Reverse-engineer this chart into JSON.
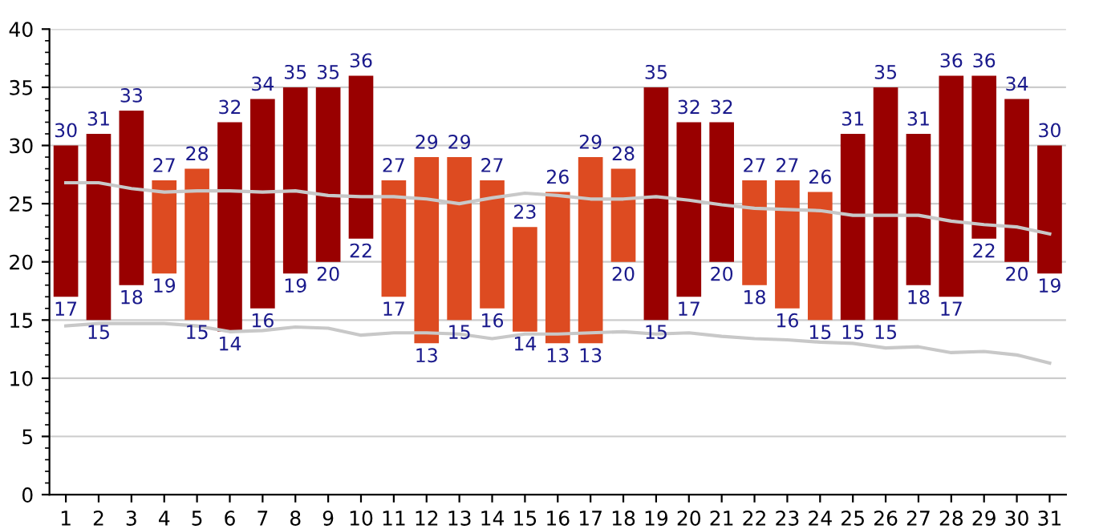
{
  "chart_data": {
    "type": "bar",
    "categories": [
      "1",
      "2",
      "3",
      "4",
      "5",
      "6",
      "7",
      "8",
      "9",
      "10",
      "11",
      "12",
      "13",
      "14",
      "15",
      "16",
      "17",
      "18",
      "19",
      "20",
      "21",
      "22",
      "23",
      "24",
      "25",
      "26",
      "27",
      "28",
      "29",
      "30",
      "31"
    ],
    "ylim": [
      0,
      40
    ],
    "yticks": [
      0,
      5,
      10,
      15,
      20,
      25,
      30,
      35,
      40
    ],
    "grid": "y",
    "legend": false,
    "series": [
      {
        "base": [
          17,
          15,
          18,
          19,
          15,
          14,
          16,
          19,
          20,
          22,
          17,
          13,
          15,
          16,
          14,
          13,
          13,
          20,
          15,
          17,
          20,
          18,
          16,
          15,
          15,
          15,
          18,
          17,
          22,
          20,
          19
        ],
        "values": [
          13,
          16,
          15,
          8,
          13,
          18,
          18,
          16,
          15,
          14,
          10,
          16,
          14,
          11,
          9,
          13,
          16,
          8,
          20,
          15,
          12,
          9,
          11,
          11,
          16,
          20,
          13,
          19,
          14,
          14,
          11
        ],
        "colors": [
          "#990000",
          "#990000",
          "#990000",
          "#dd4b21",
          "#dd4b21",
          "#990000",
          "#990000",
          "#990000",
          "#990000",
          "#990000",
          "#dd4b21",
          "#dd4b21",
          "#dd4b21",
          "#dd4b21",
          "#dd4b21",
          "#dd4b21",
          "#dd4b21",
          "#dd4b21",
          "#990000",
          "#990000",
          "#990000",
          "#dd4b21",
          "#dd4b21",
          "#dd4b21",
          "#990000",
          "#990000",
          "#990000",
          "#990000",
          "#990000",
          "#990000",
          "#990000"
        ]
      },
      {
        "type": "line",
        "color": "#c8c8c8",
        "values": [
          26.8,
          26.8,
          26.3,
          26.0,
          26.1,
          26.1,
          26.0,
          26.1,
          25.7,
          25.6,
          25.6,
          25.4,
          25.0,
          25.5,
          25.9,
          25.7,
          25.4,
          25.4,
          25.6,
          25.3,
          24.9,
          24.6,
          24.5,
          24.4,
          24.0,
          24.0,
          24.0,
          23.5,
          23.2,
          23.0,
          22.4
        ]
      },
      {
        "type": "line",
        "color": "#c8c8c8",
        "values": [
          14.5,
          14.7,
          14.7,
          14.7,
          14.5,
          14.0,
          14.1,
          14.4,
          14.3,
          13.7,
          13.9,
          13.9,
          13.8,
          13.4,
          13.8,
          13.8,
          13.9,
          14.0,
          13.8,
          13.9,
          13.6,
          13.4,
          13.3,
          13.1,
          13.0,
          12.6,
          12.7,
          12.2,
          12.3,
          12.0,
          11.3
        ]
      }
    ],
    "annotations": [
      {
        "text": "30",
        "x": "1",
        "y": 30
      },
      {
        "text": "17",
        "x": "1",
        "y": 17
      },
      {
        "text": "31",
        "x": "2",
        "y": 31
      },
      {
        "text": "15",
        "x": "2",
        "y": 15
      },
      {
        "text": "33",
        "x": "3",
        "y": 33
      },
      {
        "text": "18",
        "x": "3",
        "y": 18
      },
      {
        "text": "27",
        "x": "4",
        "y": 27
      },
      {
        "text": "19",
        "x": "4",
        "y": 19
      },
      {
        "text": "28",
        "x": "5",
        "y": 28
      },
      {
        "text": "15",
        "x": "5",
        "y": 15
      },
      {
        "text": "32",
        "x": "6",
        "y": 32
      },
      {
        "text": "14",
        "x": "6",
        "y": 14
      },
      {
        "text": "34",
        "x": "7",
        "y": 34
      },
      {
        "text": "16",
        "x": "7",
        "y": 16
      },
      {
        "text": "35",
        "x": "8",
        "y": 35
      },
      {
        "text": "19",
        "x": "8",
        "y": 19
      },
      {
        "text": "35",
        "x": "9",
        "y": 35
      },
      {
        "text": "20",
        "x": "9",
        "y": 20
      },
      {
        "text": "36",
        "x": "10",
        "y": 36
      },
      {
        "text": "22",
        "x": "10",
        "y": 22
      },
      {
        "text": "27",
        "x": "11",
        "y": 27
      },
      {
        "text": "17",
        "x": "11",
        "y": 17
      },
      {
        "text": "29",
        "x": "12",
        "y": 29
      },
      {
        "text": "13",
        "x": "12",
        "y": 13
      },
      {
        "text": "29",
        "x": "13",
        "y": 29
      },
      {
        "text": "15",
        "x": "13",
        "y": 15
      },
      {
        "text": "27",
        "x": "14",
        "y": 27
      },
      {
        "text": "16",
        "x": "14",
        "y": 16
      },
      {
        "text": "23",
        "x": "15",
        "y": 23
      },
      {
        "text": "14",
        "x": "15",
        "y": 14
      },
      {
        "text": "26",
        "x": "16",
        "y": 26
      },
      {
        "text": "13",
        "x": "16",
        "y": 13
      },
      {
        "text": "29",
        "x": "17",
        "y": 29
      },
      {
        "text": "13",
        "x": "17",
        "y": 13
      },
      {
        "text": "28",
        "x": "18",
        "y": 28
      },
      {
        "text": "20",
        "x": "18",
        "y": 20
      },
      {
        "text": "35",
        "x": "19",
        "y": 35
      },
      {
        "text": "15",
        "x": "19",
        "y": 15
      },
      {
        "text": "32",
        "x": "20",
        "y": 32
      },
      {
        "text": "17",
        "x": "20",
        "y": 17
      },
      {
        "text": "32",
        "x": "21",
        "y": 32
      },
      {
        "text": "20",
        "x": "21",
        "y": 20
      },
      {
        "text": "27",
        "x": "22",
        "y": 27
      },
      {
        "text": "18",
        "x": "22",
        "y": 18
      },
      {
        "text": "27",
        "x": "23",
        "y": 27
      },
      {
        "text": "16",
        "x": "23",
        "y": 16
      },
      {
        "text": "26",
        "x": "24",
        "y": 26
      },
      {
        "text": "15",
        "x": "24",
        "y": 15
      },
      {
        "text": "31",
        "x": "25",
        "y": 31
      },
      {
        "text": "15",
        "x": "25",
        "y": 15
      },
      {
        "text": "35",
        "x": "26",
        "y": 35
      },
      {
        "text": "15",
        "x": "26",
        "y": 15
      },
      {
        "text": "31",
        "x": "27",
        "y": 31
      },
      {
        "text": "18",
        "x": "27",
        "y": 18
      },
      {
        "text": "36",
        "x": "28",
        "y": 36
      },
      {
        "text": "17",
        "x": "28",
        "y": 17
      },
      {
        "text": "36",
        "x": "29",
        "y": 36
      },
      {
        "text": "22",
        "x": "29",
        "y": 22
      },
      {
        "text": "34",
        "x": "30",
        "y": 34
      },
      {
        "text": "20",
        "x": "30",
        "y": 20
      },
      {
        "text": "30",
        "x": "31",
        "y": 30
      },
      {
        "text": "19",
        "x": "31",
        "y": 19
      }
    ]
  }
}
